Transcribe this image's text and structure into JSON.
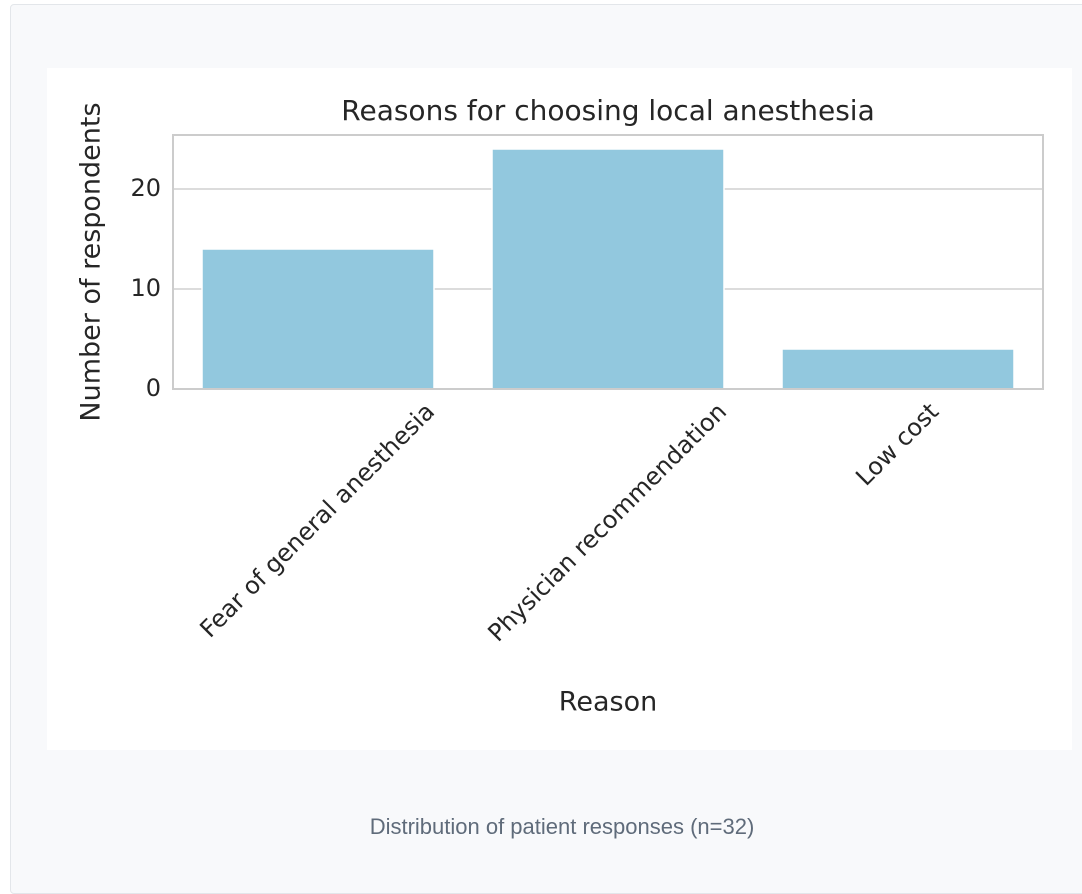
{
  "chart_data": {
    "type": "bar",
    "title": "Reasons for choosing local anesthesia",
    "xlabel": "Reason",
    "ylabel": "Number of respondents",
    "categories": [
      "Fear of general anesthesia",
      "Physician recommendation",
      "Low cost"
    ],
    "values": [
      14,
      24,
      4
    ],
    "color": "#92c8de",
    "ylim": [
      0,
      25.4
    ],
    "yticks": [
      0,
      10,
      20
    ],
    "grid": true
  },
  "caption": "Distribution of patient responses (n=32)"
}
